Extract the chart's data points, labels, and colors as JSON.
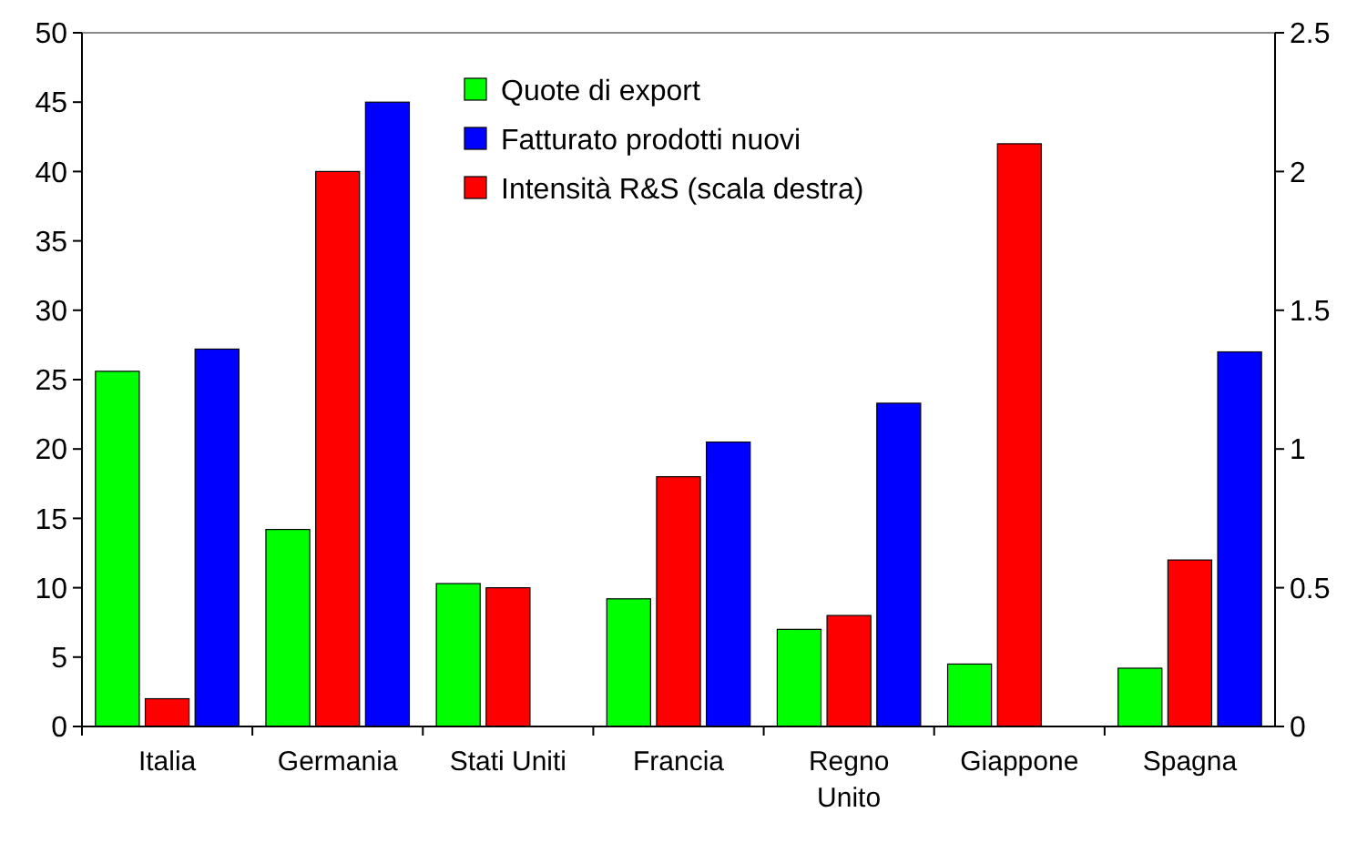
{
  "chart_data": {
    "type": "bar",
    "categories": [
      "Italia",
      "Germania",
      "Stati Uniti",
      "Francia",
      "Regno\nUnito",
      "Giappone",
      "Spagna"
    ],
    "series": [
      {
        "name": "Quote di export",
        "color": "#00ff00",
        "values": [
          25.6,
          14.2,
          10.3,
          9.2,
          7,
          4.5,
          4.2
        ]
      },
      {
        "name": "Fatturato prodotti nuovi",
        "color": "#0000ff",
        "values": [
          27.2,
          45,
          null,
          20.5,
          23.3,
          null,
          27
        ]
      },
      {
        "name": "Intensità R&S (scala destra)",
        "color": "#ff0000",
        "axis": "y2",
        "values": [
          0.1,
          2,
          0.5,
          0.9,
          0.4,
          2.1,
          0.6
        ]
      }
    ],
    "ylim": [
      0,
      50
    ],
    "yticks": [
      0,
      5,
      10,
      15,
      20,
      25,
      30,
      35,
      40,
      45,
      50
    ],
    "y2lim": [
      0,
      2.5
    ],
    "y2ticks": [
      0,
      0.5,
      1,
      1.5,
      2,
      2.5
    ],
    "grid": false,
    "legend": "top"
  }
}
